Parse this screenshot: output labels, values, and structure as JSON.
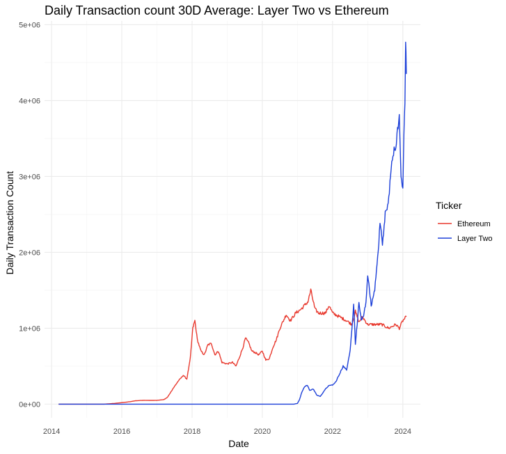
{
  "chart_data": {
    "type": "line",
    "title": "Daily Transaction count 30D Average: Layer Two vs Ethereum",
    "xlabel": "Date",
    "ylabel": "Daily Transaction Count",
    "xlim": [
      2013.8,
      2024.5
    ],
    "ylim": [
      -180000,
      5050000
    ],
    "x_ticks": [
      2014,
      2016,
      2018,
      2020,
      2022,
      2024
    ],
    "x_tick_labels": [
      "2014",
      "2016",
      "2018",
      "2020",
      "2022",
      "2024"
    ],
    "y_ticks": [
      0,
      1000000,
      2000000,
      3000000,
      4000000,
      5000000
    ],
    "y_tick_labels": [
      "0e+00",
      "1e+06",
      "2e+06",
      "3e+06",
      "4e+06",
      "5e+06"
    ],
    "grid": true,
    "legend": {
      "title": "Ticker",
      "position": "right"
    },
    "series": [
      {
        "name": "Ethereum",
        "color": "#e8392e",
        "x": [
          2014.2,
          2015.5,
          2015.8,
          2016.0,
          2016.2,
          2016.4,
          2016.6,
          2016.8,
          2017.0,
          2017.2,
          2017.3,
          2017.45,
          2017.6,
          2017.75,
          2017.85,
          2017.95,
          2018.02,
          2018.08,
          2018.15,
          2018.25,
          2018.35,
          2018.45,
          2018.55,
          2018.65,
          2018.75,
          2018.85,
          2019.0,
          2019.15,
          2019.25,
          2019.35,
          2019.45,
          2019.52,
          2019.62,
          2019.7,
          2019.8,
          2019.9,
          2020.0,
          2020.1,
          2020.2,
          2020.3,
          2020.4,
          2020.5,
          2020.6,
          2020.68,
          2020.8,
          2020.95,
          2021.1,
          2021.2,
          2021.3,
          2021.38,
          2021.5,
          2021.6,
          2021.7,
          2021.8,
          2021.9,
          2022.0,
          2022.2,
          2022.4,
          2022.55,
          2022.65,
          2022.75,
          2022.85,
          2023.0,
          2023.2,
          2023.4,
          2023.6,
          2023.8,
          2023.9,
          2024.0,
          2024.1
        ],
        "y": [
          0,
          0,
          10000,
          20000,
          30000,
          45000,
          50000,
          50000,
          50000,
          60000,
          90000,
          200000,
          300000,
          380000,
          330000,
          600000,
          1000000,
          1100000,
          850000,
          700000,
          650000,
          780000,
          800000,
          650000,
          700000,
          550000,
          530000,
          550000,
          500000,
          620000,
          750000,
          870000,
          800000,
          700000,
          680000,
          650000,
          700000,
          580000,
          600000,
          750000,
          850000,
          1000000,
          1100000,
          1180000,
          1100000,
          1200000,
          1250000,
          1300000,
          1350000,
          1500000,
          1250000,
          1200000,
          1200000,
          1200000,
          1300000,
          1200000,
          1150000,
          1100000,
          1050000,
          1220000,
          1080000,
          1150000,
          1050000,
          1050000,
          1050000,
          1000000,
          1050000,
          1000000,
          1100000,
          1150000
        ]
      },
      {
        "name": "Layer Two",
        "color": "#1c3fd8",
        "x": [
          2014.2,
          2020.9,
          2021.0,
          2021.05,
          2021.12,
          2021.2,
          2021.28,
          2021.35,
          2021.45,
          2021.55,
          2021.65,
          2021.8,
          2021.9,
          2022.0,
          2022.1,
          2022.2,
          2022.3,
          2022.4,
          2022.5,
          2022.55,
          2022.6,
          2022.65,
          2022.7,
          2022.75,
          2022.82,
          2022.9,
          2022.95,
          2023.0,
          2023.05,
          2023.1,
          2023.2,
          2023.3,
          2023.35,
          2023.42,
          2023.5,
          2023.6,
          2023.65,
          2023.72,
          2023.8,
          2023.9,
          2023.95,
          2024.0,
          2024.03,
          2024.06,
          2024.08,
          2024.1
        ],
        "y": [
          0,
          0,
          10000,
          50000,
          150000,
          230000,
          250000,
          180000,
          200000,
          120000,
          100000,
          200000,
          250000,
          250000,
          300000,
          400000,
          500000,
          450000,
          700000,
          1000000,
          1300000,
          800000,
          1050000,
          1350000,
          1100000,
          1200000,
          1350000,
          1700000,
          1500000,
          1300000,
          1500000,
          2000000,
          2400000,
          2100000,
          2500000,
          2700000,
          3000000,
          3300000,
          3400000,
          3800000,
          3000000,
          2800000,
          3500000,
          4000000,
          4800000,
          4350000
        ]
      }
    ]
  }
}
